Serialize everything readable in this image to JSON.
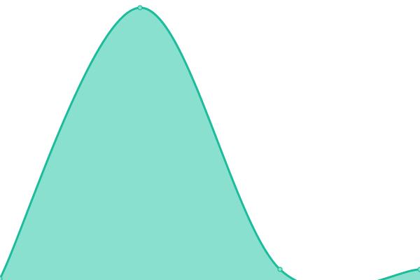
{
  "chart_data": {
    "type": "area",
    "x": [
      0,
      1,
      2,
      3
    ],
    "series": [
      {
        "values": [
          0,
          100,
          3.4,
          3.4
        ]
      }
    ],
    "ylim": [
      0,
      103
    ],
    "grid": false,
    "axes_visible": false,
    "curve": "smooth",
    "colors": {
      "line": "#1abc9c",
      "fill": "#8ae0cf",
      "marker_fill": "#8ae0cf"
    }
  }
}
